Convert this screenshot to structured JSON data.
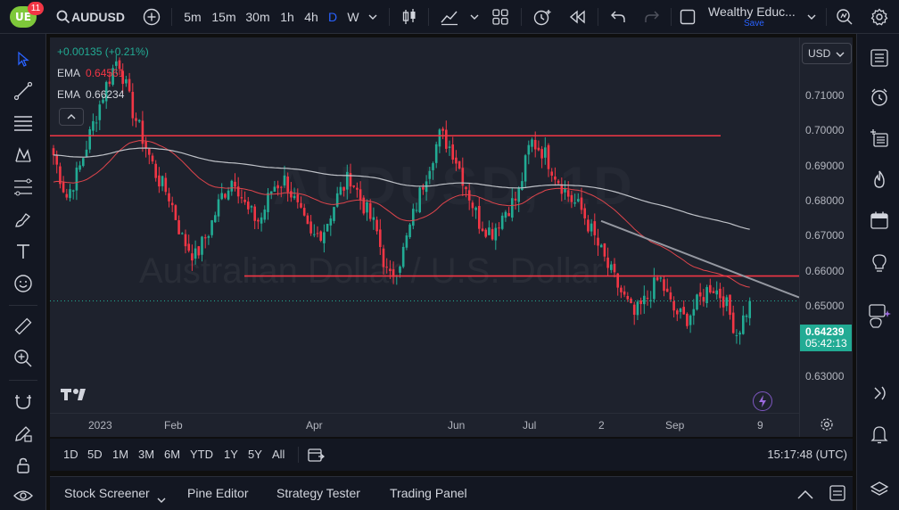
{
  "topbar": {
    "logo_text": "UE",
    "notifications": "11",
    "symbol": "AUDUSD",
    "intervals": [
      "5m",
      "15m",
      "30m",
      "1h",
      "4h",
      "D",
      "W"
    ],
    "active_interval": "D",
    "layout_name": "Wealthy Educ...",
    "layout_save": "Save"
  },
  "legend": {
    "change": "+0.00135 (+0.21%)",
    "ema1_label": "EMA",
    "ema1_value": "0.64561",
    "ema2_label": "EMA",
    "ema2_value": "0.66234"
  },
  "watermark": {
    "symbol": "AUDUSD, 1D",
    "description": "Australian Dollar / U.S. Dollar"
  },
  "price_scale": {
    "currency": "USD",
    "ticks": [
      "0.71000",
      "0.70000",
      "0.69000",
      "0.68000",
      "0.67000",
      "0.66000",
      "0.65000",
      "0.63000"
    ],
    "last_price": "0.64239",
    "countdown": "05:42:13"
  },
  "time_axis": {
    "ticks": [
      "2023",
      "Feb",
      "Apr",
      "Jun",
      "Jul",
      "2",
      "Sep",
      "9"
    ]
  },
  "range_bar": {
    "ranges": [
      "1D",
      "5D",
      "1M",
      "3M",
      "6M",
      "YTD",
      "1Y",
      "5Y",
      "All"
    ],
    "clock": "15:17:48 (UTC)"
  },
  "bottom_bar": {
    "tabs": [
      "Stock Screener",
      "Pine Editor",
      "Strategy Tester",
      "Trading Panel"
    ]
  },
  "colors": {
    "up": "#22ab94",
    "down": "#f23645",
    "ema_fast": "#e0454c",
    "ema_slow": "#bfc2c8",
    "levels": "#f23645",
    "trendline": "#9598a1",
    "accent": "#2962ff"
  },
  "chart_data": {
    "type": "candlestick",
    "indicators": [
      {
        "name": "EMA",
        "value": 0.64561
      },
      {
        "name": "EMA",
        "value": 0.66234
      }
    ],
    "horizontal_levels": [
      0.6895,
      0.6495
    ],
    "last_price": 0.64239,
    "ylim": [
      0.625,
      0.717
    ],
    "close_path": [
      0.684,
      0.672,
      0.68,
      0.692,
      0.703,
      0.712,
      0.698,
      0.688,
      0.678,
      0.672,
      0.66,
      0.655,
      0.662,
      0.672,
      0.678,
      0.668,
      0.665,
      0.675,
      0.677,
      0.668,
      0.66,
      0.663,
      0.672,
      0.678,
      0.67,
      0.663,
      0.648,
      0.655,
      0.668,
      0.68,
      0.69,
      0.685,
      0.675,
      0.665,
      0.662,
      0.668,
      0.672,
      0.688,
      0.685,
      0.678,
      0.672,
      0.668,
      0.66,
      0.652,
      0.645,
      0.638,
      0.643,
      0.649,
      0.64,
      0.637,
      0.642,
      0.647,
      0.643,
      0.633,
      0.642
    ]
  }
}
